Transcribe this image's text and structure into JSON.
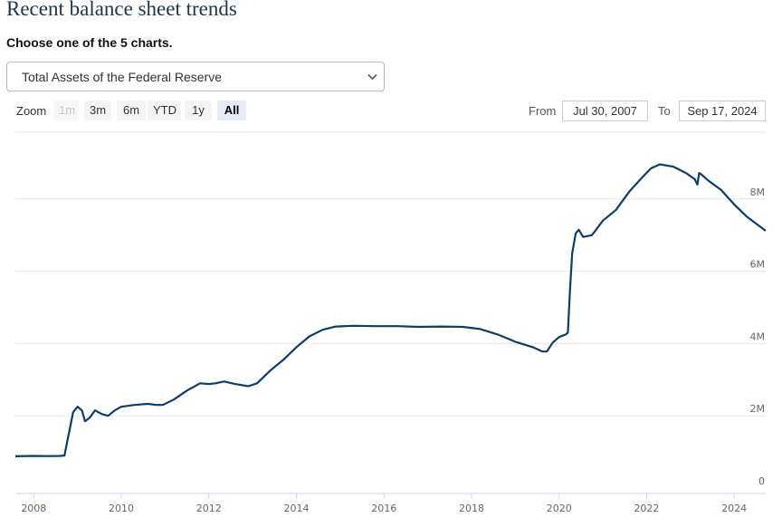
{
  "page": {
    "title": "Recent balance sheet trends",
    "instruction": "Choose one of the 5 charts."
  },
  "selector": {
    "selected": "Total Assets of the Federal Reserve"
  },
  "zoom": {
    "label": "Zoom",
    "buttons": [
      {
        "label": "1m",
        "state": "disabled"
      },
      {
        "label": "3m",
        "state": "normal"
      },
      {
        "label": "6m",
        "state": "normal"
      },
      {
        "label": "YTD",
        "state": "normal"
      },
      {
        "label": "1y",
        "state": "normal"
      },
      {
        "label": "All",
        "state": "active"
      }
    ]
  },
  "range": {
    "from_label": "From",
    "from_value": "Jul 30, 2007",
    "to_label": "To",
    "to_value": "Sep 17, 2024"
  },
  "colors": {
    "line": "#0b3d6e",
    "grid": "#e6e6e6",
    "title": "#1c3553"
  },
  "chart_data": {
    "type": "line",
    "title": "",
    "xlabel": "",
    "ylabel": "",
    "grid": true,
    "legend": "none",
    "xlim": [
      2007.58,
      2024.72
    ],
    "ylim": [
      0,
      10000000
    ],
    "x_ticks": [
      2008,
      2010,
      2012,
      2014,
      2016,
      2018,
      2020,
      2022,
      2024
    ],
    "x_tick_labels": [
      "2008",
      "2010",
      "2012",
      "2014",
      "2016",
      "2018",
      "2020",
      "2022",
      "2024"
    ],
    "y_ticks": [
      0,
      2000000,
      4000000,
      6000000,
      8000000
    ],
    "y_tick_labels": [
      "0",
      "2M",
      "4M",
      "6M",
      "8M"
    ],
    "series": [
      {
        "name": "",
        "points": [
          [
            2007.58,
            880000
          ],
          [
            2008.0,
            890000
          ],
          [
            2008.3,
            885000
          ],
          [
            2008.6,
            890000
          ],
          [
            2008.7,
            900000
          ],
          [
            2008.8,
            1500000
          ],
          [
            2008.9,
            2100000
          ],
          [
            2009.0,
            2250000
          ],
          [
            2009.1,
            2150000
          ],
          [
            2009.17,
            1850000
          ],
          [
            2009.28,
            1950000
          ],
          [
            2009.4,
            2150000
          ],
          [
            2009.55,
            2050000
          ],
          [
            2009.7,
            2000000
          ],
          [
            2009.85,
            2150000
          ],
          [
            2010.0,
            2250000
          ],
          [
            2010.3,
            2300000
          ],
          [
            2010.6,
            2330000
          ],
          [
            2010.8,
            2300000
          ],
          [
            2010.95,
            2300000
          ],
          [
            2011.2,
            2450000
          ],
          [
            2011.5,
            2700000
          ],
          [
            2011.8,
            2900000
          ],
          [
            2012.0,
            2880000
          ],
          [
            2012.15,
            2900000
          ],
          [
            2012.35,
            2950000
          ],
          [
            2012.6,
            2880000
          ],
          [
            2012.9,
            2820000
          ],
          [
            2013.1,
            2900000
          ],
          [
            2013.4,
            3250000
          ],
          [
            2013.7,
            3550000
          ],
          [
            2014.0,
            3900000
          ],
          [
            2014.3,
            4200000
          ],
          [
            2014.6,
            4380000
          ],
          [
            2014.9,
            4470000
          ],
          [
            2015.3,
            4490000
          ],
          [
            2015.8,
            4480000
          ],
          [
            2016.3,
            4480000
          ],
          [
            2016.8,
            4460000
          ],
          [
            2017.3,
            4470000
          ],
          [
            2017.8,
            4460000
          ],
          [
            2018.2,
            4400000
          ],
          [
            2018.6,
            4250000
          ],
          [
            2019.0,
            4050000
          ],
          [
            2019.4,
            3900000
          ],
          [
            2019.62,
            3780000
          ],
          [
            2019.72,
            3780000
          ],
          [
            2019.85,
            4020000
          ],
          [
            2020.0,
            4180000
          ],
          [
            2020.15,
            4250000
          ],
          [
            2020.2,
            4300000
          ],
          [
            2020.25,
            5500000
          ],
          [
            2020.3,
            6500000
          ],
          [
            2020.38,
            7050000
          ],
          [
            2020.45,
            7150000
          ],
          [
            2020.55,
            6950000
          ],
          [
            2020.75,
            7000000
          ],
          [
            2021.0,
            7400000
          ],
          [
            2021.3,
            7700000
          ],
          [
            2021.6,
            8200000
          ],
          [
            2021.9,
            8600000
          ],
          [
            2022.1,
            8850000
          ],
          [
            2022.3,
            8960000
          ],
          [
            2022.6,
            8900000
          ],
          [
            2022.9,
            8720000
          ],
          [
            2023.1,
            8550000
          ],
          [
            2023.16,
            8400000
          ],
          [
            2023.2,
            8720000
          ],
          [
            2023.25,
            8680000
          ],
          [
            2023.4,
            8520000
          ],
          [
            2023.7,
            8250000
          ],
          [
            2024.0,
            7850000
          ],
          [
            2024.3,
            7500000
          ],
          [
            2024.72,
            7120000
          ]
        ]
      }
    ]
  }
}
